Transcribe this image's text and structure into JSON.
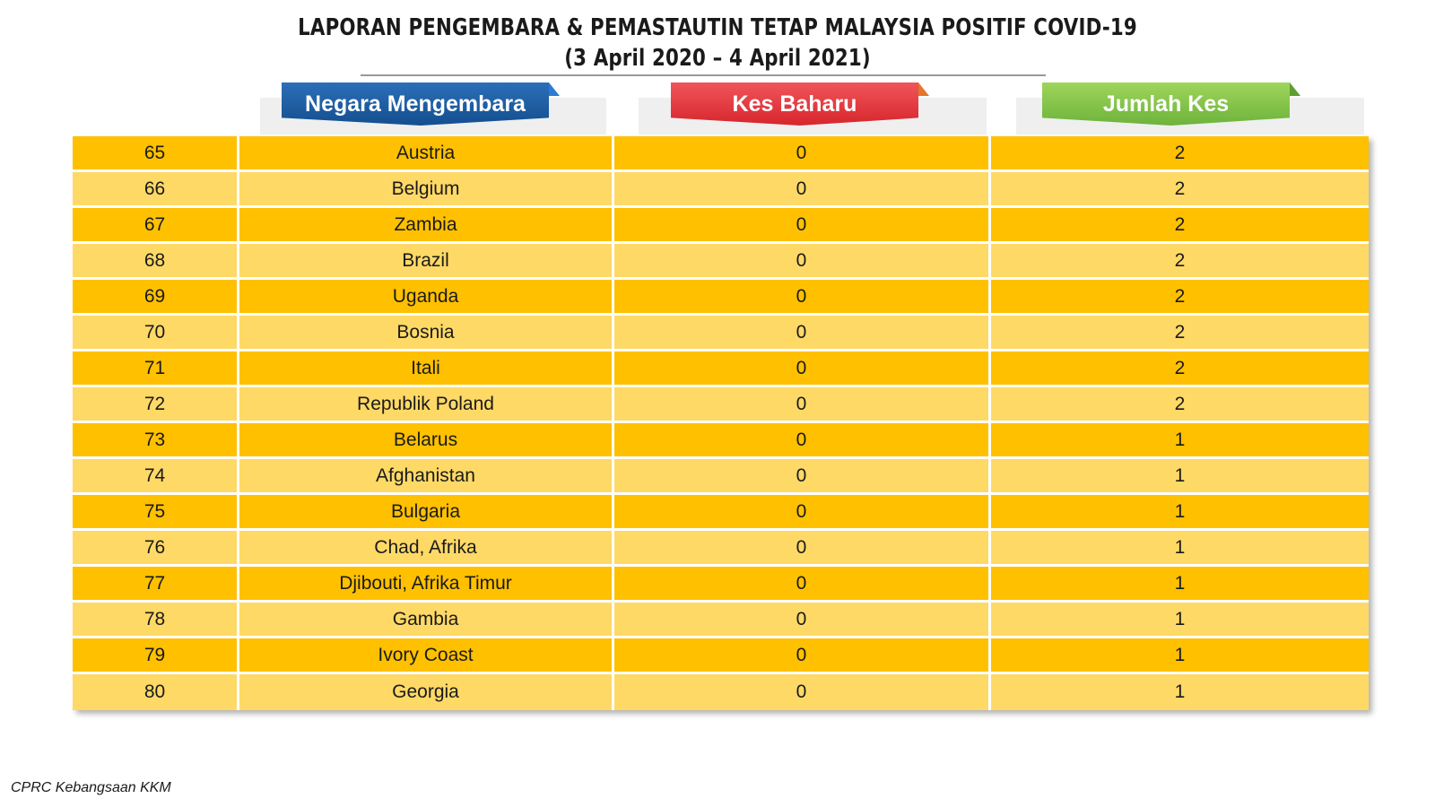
{
  "title": {
    "line1": "LAPORAN PENGEMBARA & PEMASTAUTIN TETAP MALAYSIA POSITIF COVID-19",
    "line2": "(3 April 2020 – 4 April 2021)"
  },
  "headers": {
    "country": "Negara Mengembara",
    "new_cases": "Kes Baharu",
    "total_cases": "Jumlah Kes"
  },
  "colors": {
    "country_header": "#1f5ea8",
    "new_cases_header": "#e8383d",
    "total_cases_header": "#7cc243",
    "row_dark": "#ffc000",
    "row_light": "#ffd966"
  },
  "rows": [
    {
      "no": "65",
      "country": "Austria",
      "new": "0",
      "total": "2"
    },
    {
      "no": "66",
      "country": "Belgium",
      "new": "0",
      "total": "2"
    },
    {
      "no": "67",
      "country": "Zambia",
      "new": "0",
      "total": "2"
    },
    {
      "no": "68",
      "country": "Brazil",
      "new": "0",
      "total": "2"
    },
    {
      "no": "69",
      "country": "Uganda",
      "new": "0",
      "total": "2"
    },
    {
      "no": "70",
      "country": "Bosnia",
      "new": "0",
      "total": "2"
    },
    {
      "no": "71",
      "country": "Itali",
      "new": "0",
      "total": "2"
    },
    {
      "no": "72",
      "country": "Republik Poland",
      "new": "0",
      "total": "2"
    },
    {
      "no": "73",
      "country": "Belarus",
      "new": "0",
      "total": "1"
    },
    {
      "no": "74",
      "country": "Afghanistan",
      "new": "0",
      "total": "1"
    },
    {
      "no": "75",
      "country": "Bulgaria",
      "new": "0",
      "total": "1"
    },
    {
      "no": "76",
      "country": "Chad, Afrika",
      "new": "0",
      "total": "1"
    },
    {
      "no": "77",
      "country": "Djibouti, Afrika Timur",
      "new": "0",
      "total": "1"
    },
    {
      "no": "78",
      "country": "Gambia",
      "new": "0",
      "total": "1"
    },
    {
      "no": "79",
      "country": "Ivory Coast",
      "new": "0",
      "total": "1"
    },
    {
      "no": "80",
      "country": "Georgia",
      "new": "0",
      "total": "1"
    }
  ],
  "footer": "CPRC Kebangsaan KKM"
}
